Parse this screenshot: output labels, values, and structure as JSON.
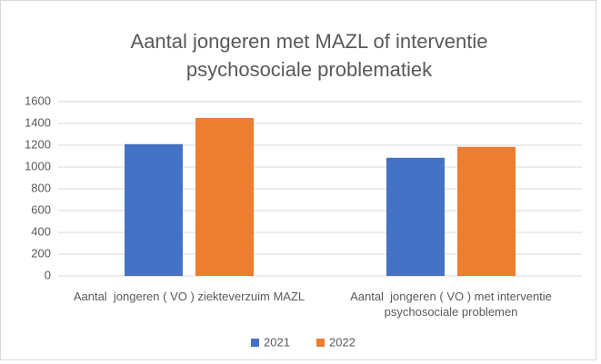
{
  "chart_data": {
    "type": "bar",
    "title": "Aantal jongeren met MAZL of interventie psychosociale problematiek",
    "categories": [
      "Aantal  jongeren ( VO ) ziekteverzuim MAZL",
      "Aantal  jongeren ( VO ) met interventie psychosociale problemen"
    ],
    "series": [
      {
        "name": "2021",
        "color": "#4472c4",
        "values": [
          1210,
          1085
        ]
      },
      {
        "name": "2022",
        "color": "#ed7d31",
        "values": [
          1450,
          1185
        ]
      }
    ],
    "ylim": [
      0,
      1600
    ],
    "yticks": [
      0,
      200,
      400,
      600,
      800,
      1000,
      1200,
      1400,
      1600
    ],
    "grid": true,
    "legend": "bottom"
  }
}
